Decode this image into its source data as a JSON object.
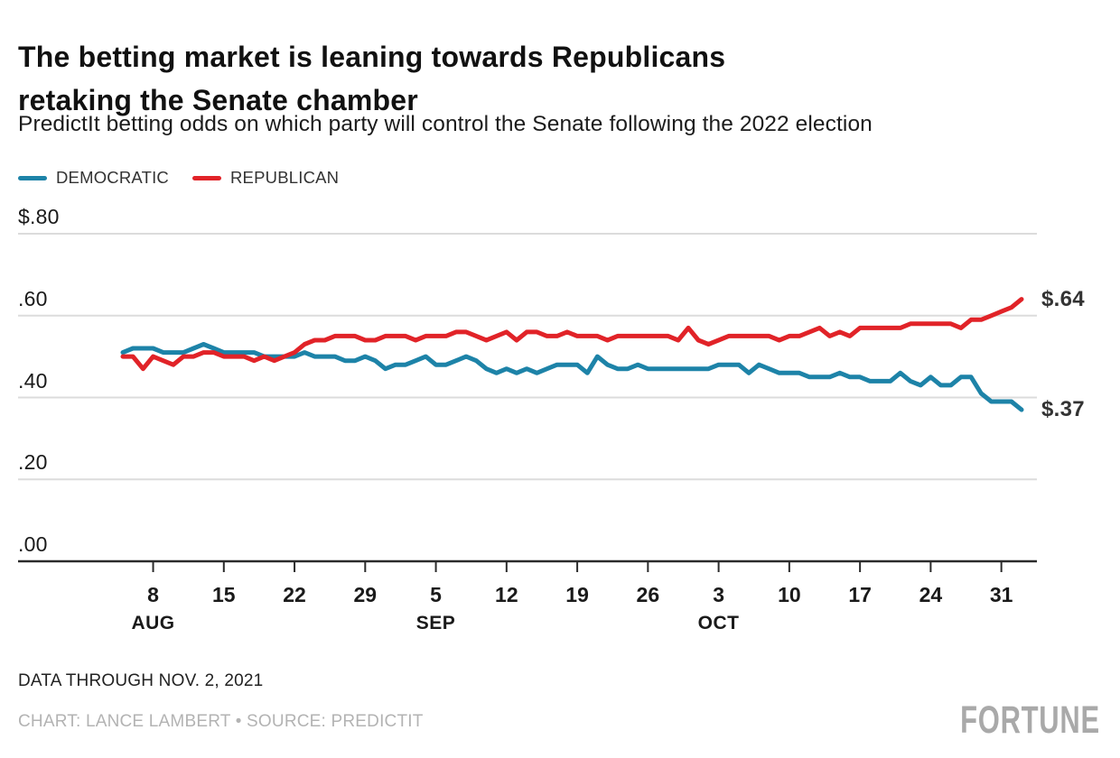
{
  "header": {
    "title_line1": "The betting market is leaning towards Republicans",
    "title_line2": "retaking the Senate chamber",
    "subtitle": "PredictIt betting odds on which party will control the Senate following the 2022 election"
  },
  "legend": [
    {
      "label": "DEMOCRATIC",
      "color": "#1d83a8"
    },
    {
      "label": "REPUBLICAN",
      "color": "#e12328"
    }
  ],
  "chart_data": {
    "type": "line",
    "title": "The betting market is leaning towards Republicans retaking the Senate chamber",
    "subtitle": "PredictIt betting odds on which party will control the Senate following the 2022 election",
    "unit": "dollars",
    "ylim": [
      0.0,
      0.8
    ],
    "grid": "horizontal",
    "legend_position": "top-left",
    "x_start_date": "2021-08-05",
    "x_end_date": "2021-11-02",
    "frequency": "daily",
    "y_ticks": [
      {
        "label": "$.80",
        "value": 0.8
      },
      {
        "label": ".60",
        "value": 0.6
      },
      {
        "label": ".40",
        "value": 0.4
      },
      {
        "label": ".20",
        "value": 0.2
      },
      {
        "label": ".00",
        "value": 0.0
      }
    ],
    "x_ticks": [
      {
        "label": "8",
        "day_offset": 3,
        "month": "AUG"
      },
      {
        "label": "15",
        "day_offset": 10,
        "month": ""
      },
      {
        "label": "22",
        "day_offset": 17,
        "month": ""
      },
      {
        "label": "29",
        "day_offset": 24,
        "month": ""
      },
      {
        "label": "5",
        "day_offset": 31,
        "month": "SEP"
      },
      {
        "label": "12",
        "day_offset": 38,
        "month": ""
      },
      {
        "label": "19",
        "day_offset": 45,
        "month": ""
      },
      {
        "label": "26",
        "day_offset": 52,
        "month": ""
      },
      {
        "label": "3",
        "day_offset": 59,
        "month": "OCT"
      },
      {
        "label": "10",
        "day_offset": 66,
        "month": ""
      },
      {
        "label": "17",
        "day_offset": 73,
        "month": ""
      },
      {
        "label": "24",
        "day_offset": 80,
        "month": ""
      },
      {
        "label": "31",
        "day_offset": 87,
        "month": ""
      }
    ],
    "series": [
      {
        "name": "DEMOCRATIC",
        "color": "#1d83a8",
        "end_label": "$.37",
        "end_value": 0.37,
        "values": [
          0.51,
          0.52,
          0.52,
          0.52,
          0.51,
          0.51,
          0.51,
          0.52,
          0.53,
          0.52,
          0.51,
          0.51,
          0.51,
          0.51,
          0.5,
          0.5,
          0.5,
          0.5,
          0.51,
          0.5,
          0.5,
          0.5,
          0.49,
          0.49,
          0.5,
          0.49,
          0.47,
          0.48,
          0.48,
          0.49,
          0.5,
          0.48,
          0.48,
          0.49,
          0.5,
          0.49,
          0.47,
          0.46,
          0.47,
          0.46,
          0.47,
          0.46,
          0.47,
          0.48,
          0.48,
          0.48,
          0.46,
          0.5,
          0.48,
          0.47,
          0.47,
          0.48,
          0.47,
          0.47,
          0.47,
          0.47,
          0.47,
          0.47,
          0.47,
          0.48,
          0.48,
          0.48,
          0.46,
          0.48,
          0.47,
          0.46,
          0.46,
          0.46,
          0.45,
          0.45,
          0.45,
          0.46,
          0.45,
          0.45,
          0.44,
          0.44,
          0.44,
          0.46,
          0.44,
          0.43,
          0.45,
          0.43,
          0.43,
          0.45,
          0.45,
          0.41,
          0.39,
          0.39,
          0.39,
          0.37
        ]
      },
      {
        "name": "REPUBLICAN",
        "color": "#e12328",
        "end_label": "$.64",
        "end_value": 0.64,
        "values": [
          0.5,
          0.5,
          0.47,
          0.5,
          0.49,
          0.48,
          0.5,
          0.5,
          0.51,
          0.51,
          0.5,
          0.5,
          0.5,
          0.49,
          0.5,
          0.49,
          0.5,
          0.51,
          0.53,
          0.54,
          0.54,
          0.55,
          0.55,
          0.55,
          0.54,
          0.54,
          0.55,
          0.55,
          0.55,
          0.54,
          0.55,
          0.55,
          0.55,
          0.56,
          0.56,
          0.55,
          0.54,
          0.55,
          0.56,
          0.54,
          0.56,
          0.56,
          0.55,
          0.55,
          0.56,
          0.55,
          0.55,
          0.55,
          0.54,
          0.55,
          0.55,
          0.55,
          0.55,
          0.55,
          0.55,
          0.54,
          0.57,
          0.54,
          0.53,
          0.54,
          0.55,
          0.55,
          0.55,
          0.55,
          0.55,
          0.54,
          0.55,
          0.55,
          0.56,
          0.57,
          0.55,
          0.56,
          0.55,
          0.57,
          0.57,
          0.57,
          0.57,
          0.57,
          0.58,
          0.58,
          0.58,
          0.58,
          0.58,
          0.57,
          0.59,
          0.59,
          0.6,
          0.61,
          0.62,
          0.64
        ]
      }
    ]
  },
  "footer": {
    "note": "DATA THROUGH NOV. 2, 2021",
    "credit": "CHART: LANCE LAMBERT • SOURCE: PREDICTIT",
    "brand": "FORTUNE"
  }
}
